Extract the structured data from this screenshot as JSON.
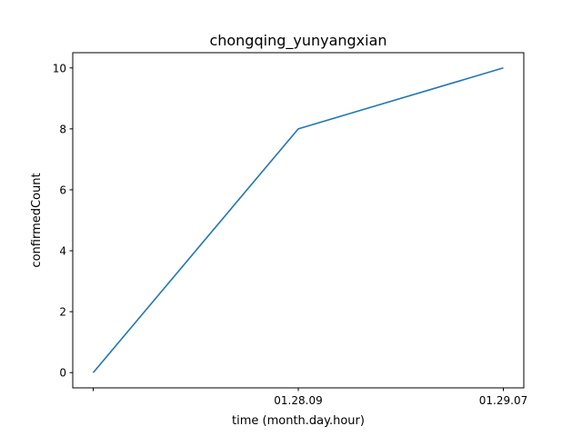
{
  "chart_data": {
    "type": "line",
    "title": "chongqing_yunyangxian",
    "xlabel": "time (month.day.hour)",
    "ylabel": "confirmedCount",
    "categories": [
      "",
      "01.28.09",
      "01.29.07"
    ],
    "series": [
      {
        "values": [
          0,
          8,
          10
        ],
        "color": "#1f77b4"
      }
    ],
    "ylim": [
      -0.5,
      10.5
    ],
    "yticks": [
      0,
      2,
      4,
      6,
      8,
      10
    ],
    "grid": false,
    "legend": "none"
  }
}
